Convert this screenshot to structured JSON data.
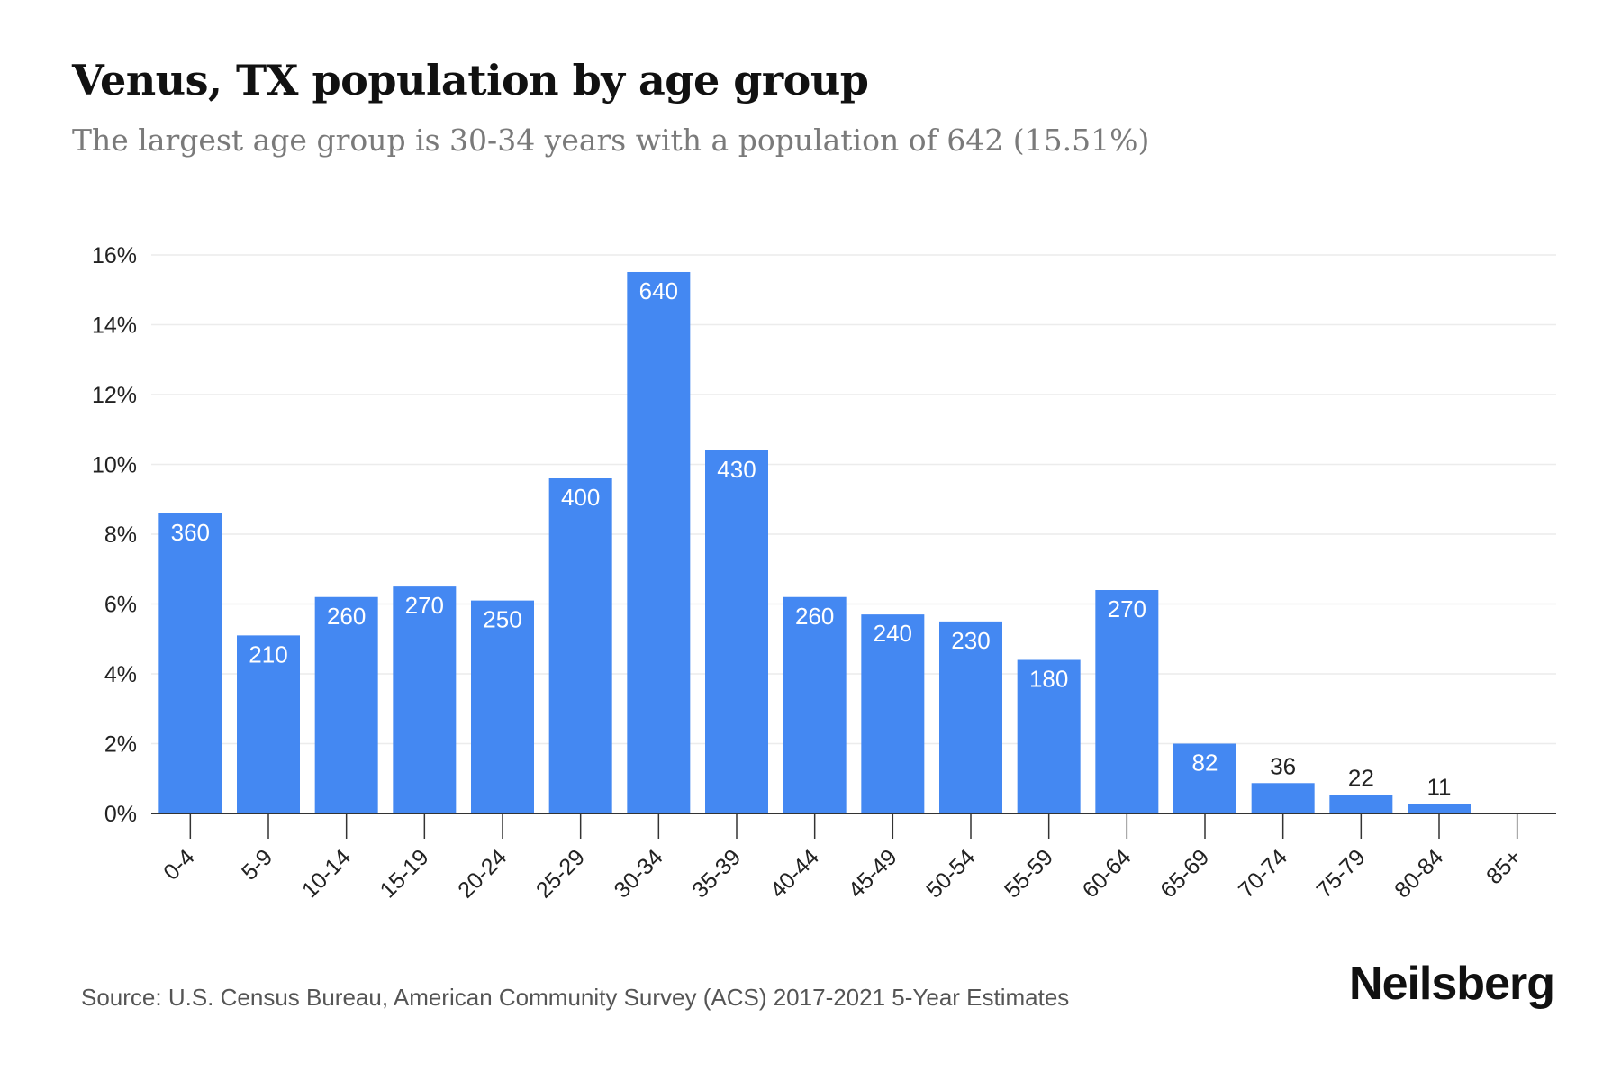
{
  "header": {
    "title": "Venus, TX population by age group",
    "subtitle": "The largest age group is 30-34 years with a population of 642 (15.51%)"
  },
  "footer": {
    "source": "Source: U.S. Census Bureau, American Community Survey (ACS) 2017-2021 5-Year Estimates",
    "brand": "Neilsberg"
  },
  "colors": {
    "bar": "#4488f2",
    "grid": "#ececec",
    "axis": "#333333"
  },
  "chart_data": {
    "type": "bar",
    "title": "Venus, TX population by age group",
    "subtitle": "The largest age group is 30-34 years with a population of 642 (15.51%)",
    "categories": [
      "0-4",
      "5-9",
      "10-14",
      "15-19",
      "20-24",
      "25-29",
      "30-34",
      "35-39",
      "40-44",
      "45-49",
      "50-54",
      "55-59",
      "60-64",
      "65-69",
      "70-74",
      "75-79",
      "80-84",
      "85+"
    ],
    "values": [
      8.6,
      5.1,
      6.2,
      6.5,
      6.1,
      9.6,
      15.51,
      10.4,
      6.2,
      5.7,
      5.5,
      4.4,
      6.4,
      2.0,
      0.87,
      0.53,
      0.27,
      0
    ],
    "labels": [
      "360",
      "210",
      "260",
      "270",
      "250",
      "400",
      "640",
      "430",
      "260",
      "240",
      "230",
      "180",
      "270",
      "82",
      "36",
      "22",
      "11",
      ""
    ],
    "yticks": [
      "0%",
      "2%",
      "4%",
      "6%",
      "8%",
      "10%",
      "12%",
      "14%",
      "16%"
    ],
    "ylim": [
      0,
      16
    ],
    "xlabel": "",
    "ylabel": "",
    "grid": true
  }
}
